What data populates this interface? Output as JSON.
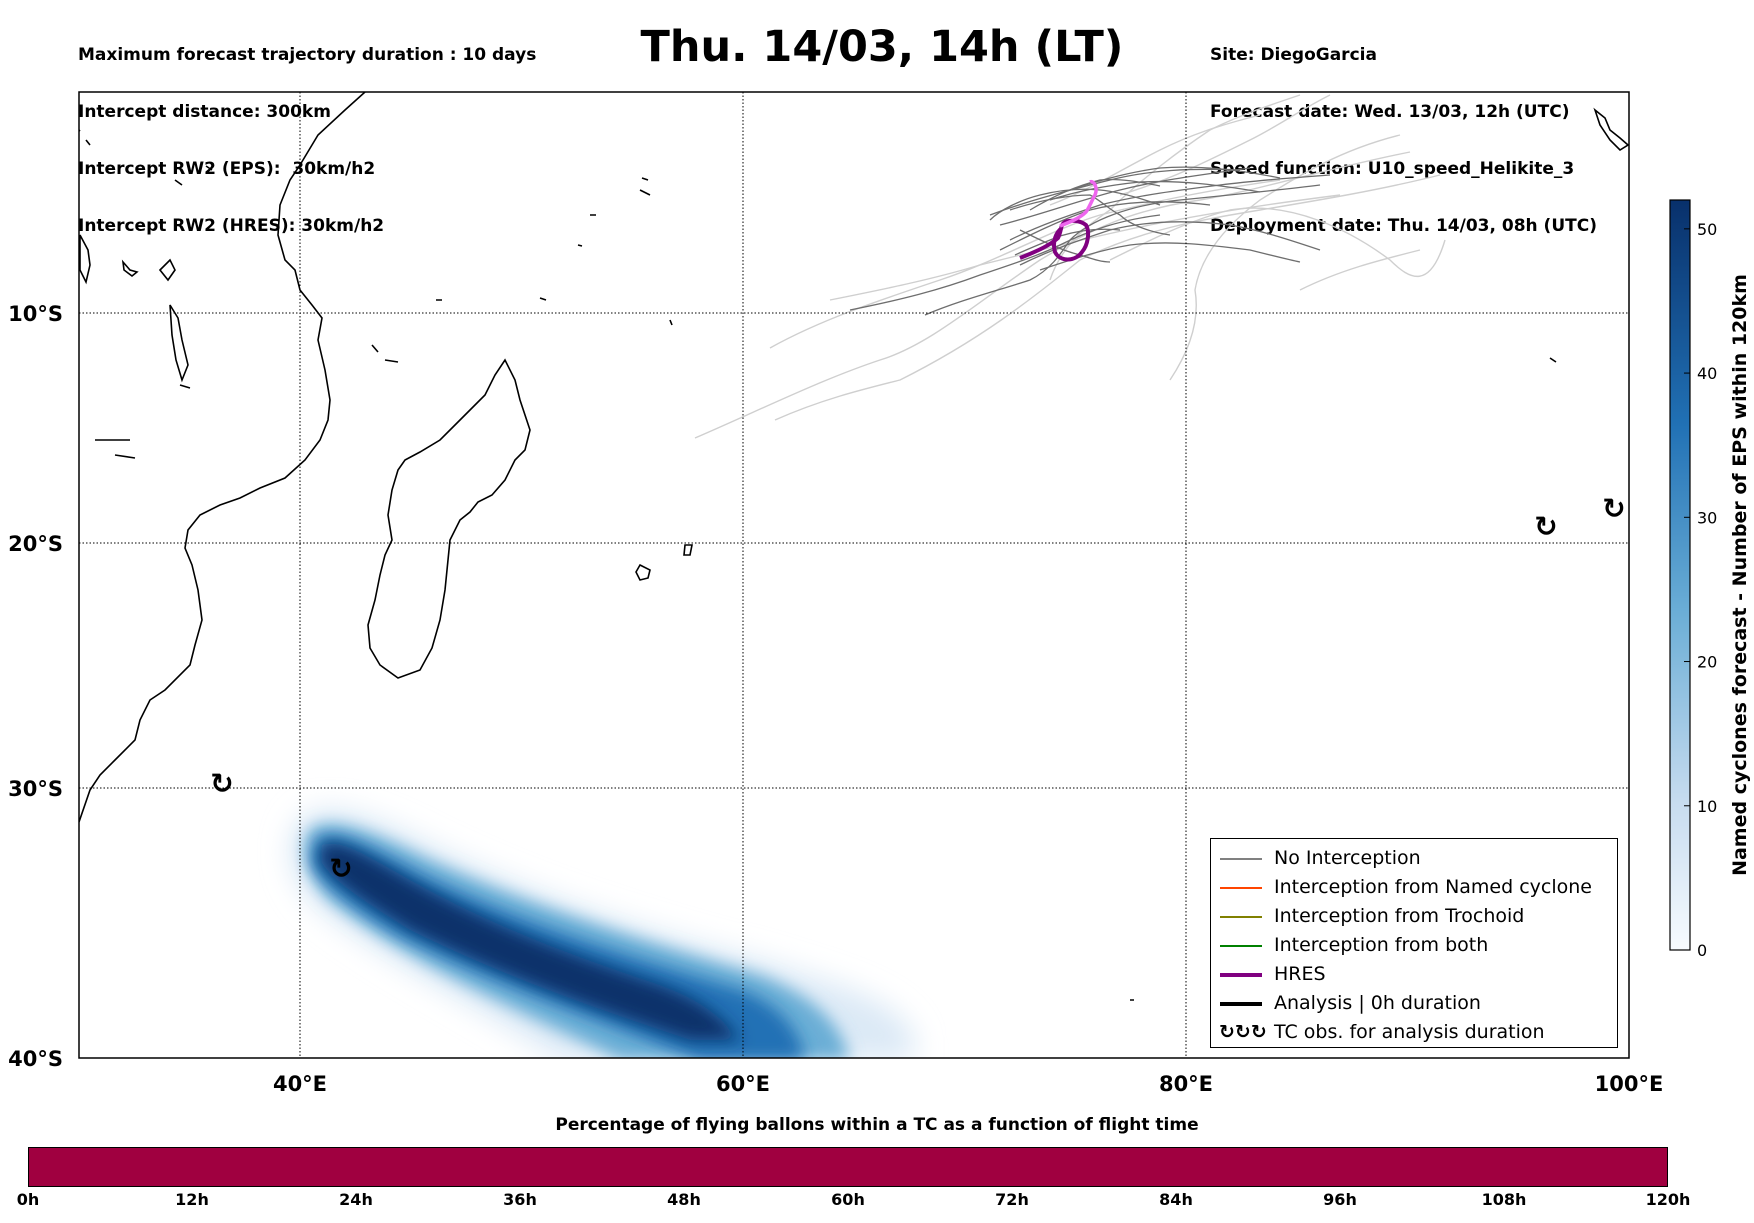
{
  "header_left": [
    "Maximum forecast trajectory duration : 10 days",
    "Intercept distance: 300km",
    "Intercept RW2 (EPS):  30km/h2",
    "Intercept RW2 (HRES): 30km/h2"
  ],
  "header_right": [
    "Site: DiegoGarcia",
    "Forecast date: Wed. 13/03, 12h (UTC)",
    "Speed function: U10_speed_Helikite_3",
    "Deployment date: Thu. 14/03, 08h (UTC)"
  ],
  "title": "Thu. 14/03, 14h (LT)",
  "map": {
    "lon_range": [
      30,
      100
    ],
    "lat_range": [
      -40,
      0
    ],
    "lon_ticks": [
      "40°E",
      "60°E",
      "80°E",
      "100°E"
    ],
    "lat_ticks": [
      "10°S",
      "20°S",
      "30°S",
      "40°S"
    ],
    "gridlines": true
  },
  "colorbar": {
    "label": "Named cyclones forecast - Number of EPS within 120km",
    "ticks": [
      "0",
      "10",
      "20",
      "30",
      "40",
      "50"
    ],
    "range": [
      0,
      52
    ],
    "colors": [
      "#f7fbff",
      "#08306b"
    ]
  },
  "legend": [
    {
      "label": "No Interception",
      "color": "#808080"
    },
    {
      "label": "Interception from Named cyclone",
      "color": "#ff4500"
    },
    {
      "label": "Interception from Trochoid",
      "color": "#808000"
    },
    {
      "label": "Interception from both",
      "color": "#008000"
    },
    {
      "label": "HRES",
      "color": "#800080"
    },
    {
      "label": "Analysis | 0h duration",
      "color": "#000000"
    },
    {
      "label": "TC obs. for analysis duration",
      "color": "#000000"
    }
  ],
  "legend_symbol": "↻↻↻",
  "tc_obs_symbol": "↻",
  "bottom": {
    "title": "Percentage of flying ballons within a TC as a function of flight time",
    "ticks": [
      "0h",
      "12h",
      "24h",
      "36h",
      "48h",
      "60h",
      "72h",
      "84h",
      "96h",
      "108h",
      "120h"
    ],
    "bar_color": "#a00040"
  }
}
